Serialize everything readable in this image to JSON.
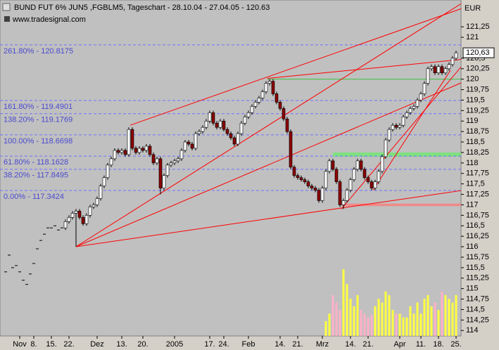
{
  "chart_data": {
    "type": "candlestick",
    "title": "BUND FUT 6% JUN5 ,FGBLM5, Tageschart - 28.10.04 - 27.04.05 - 120.63",
    "subtitle": "www.tradesignal.com",
    "unit": "EUR",
    "colors": {
      "up": "#ffffff",
      "down": "#8b0000",
      "volume_up": "#ffff40",
      "volume_down": "#ffb0c8",
      "trend": "#ff0000",
      "fib": "#7070ff",
      "fib_text": "#4a4ad0"
    },
    "open": [
      115.4,
      115.8,
      115.5,
      115.55,
      115.4,
      115.2,
      115.1,
      115.35,
      115.6,
      115.95,
      116.15,
      116.3,
      116.45,
      116.45,
      116.5,
      116.4,
      116.45,
      116.45,
      116.6,
      116.7,
      116.8,
      116.85,
      116.7,
      116.55,
      116.75,
      116.95,
      117.0,
      117.15,
      117.45,
      117.65,
      117.95,
      118.1,
      118.3,
      118.25,
      118.3,
      118.2,
      118.8,
      118.35,
      118.25,
      118.35,
      118.3,
      118.4,
      118.2,
      118.0,
      118.1,
      117.4,
      117.7,
      117.95,
      118.0,
      118.05,
      118.1,
      118.3,
      118.5,
      118.45,
      118.35,
      118.7,
      118.75,
      118.85,
      119.0,
      119.2,
      118.95,
      118.85,
      119.0,
      118.8,
      118.7,
      118.6,
      118.45,
      118.7,
      118.95,
      119.1,
      119.2,
      119.35,
      119.45,
      119.55,
      119.7,
      119.9,
      119.95,
      119.65,
      119.45,
      119.3,
      119.05,
      118.75,
      117.9,
      117.7,
      117.65,
      117.6,
      117.55,
      117.45,
      117.4,
      117.35,
      117.1,
      117.4,
      117.8,
      118.05,
      117.85,
      117.55,
      117.0,
      117.1,
      117.35,
      117.6,
      117.85,
      118.05,
      117.85,
      117.65,
      117.55,
      117.4,
      117.55,
      117.8,
      118.15,
      118.55,
      118.8,
      118.9,
      118.85,
      118.9,
      119.1,
      119.2,
      119.3,
      119.35,
      119.5,
      119.65,
      119.9,
      120.25,
      120.3,
      120.15,
      120.3,
      120.15,
      120.25,
      120.35,
      120.5
    ],
    "high": [
      115.4,
      115.8,
      115.5,
      115.55,
      115.4,
      115.2,
      115.1,
      115.35,
      115.6,
      115.95,
      116.15,
      116.3,
      116.45,
      116.45,
      116.5,
      116.4,
      116.45,
      116.65,
      116.75,
      116.85,
      116.9,
      116.9,
      116.75,
      116.8,
      117.0,
      117.05,
      117.2,
      117.5,
      117.7,
      118.0,
      118.15,
      118.35,
      118.35,
      118.35,
      118.35,
      118.85,
      118.85,
      118.4,
      118.4,
      118.4,
      118.45,
      118.45,
      118.25,
      118.15,
      118.15,
      117.75,
      118.0,
      118.05,
      118.1,
      118.15,
      118.35,
      118.55,
      118.55,
      118.5,
      118.75,
      118.8,
      118.9,
      119.05,
      119.25,
      119.25,
      119.0,
      119.05,
      119.05,
      118.85,
      118.75,
      118.65,
      118.75,
      119.0,
      119.15,
      119.25,
      119.4,
      119.5,
      119.6,
      119.75,
      119.95,
      120.0,
      120.0,
      119.7,
      119.5,
      119.35,
      119.1,
      118.8,
      117.95,
      117.75,
      117.7,
      117.65,
      117.6,
      117.5,
      117.45,
      117.4,
      117.45,
      117.85,
      118.1,
      118.1,
      117.9,
      117.6,
      117.15,
      117.4,
      117.65,
      117.9,
      118.1,
      118.1,
      117.9,
      117.7,
      117.6,
      117.6,
      117.85,
      118.2,
      118.6,
      118.85,
      118.95,
      118.95,
      118.95,
      119.15,
      119.25,
      119.35,
      119.4,
      119.55,
      119.7,
      119.95,
      120.3,
      120.35,
      120.35,
      120.35,
      120.35,
      120.3,
      120.4,
      120.55,
      120.68
    ],
    "low": [
      115.4,
      115.8,
      115.5,
      115.55,
      115.4,
      115.2,
      115.1,
      115.35,
      115.6,
      115.95,
      116.15,
      116.3,
      116.45,
      116.45,
      116.5,
      116.4,
      116.45,
      116.4,
      116.55,
      116.65,
      116.0,
      116.65,
      116.5,
      116.5,
      116.7,
      116.9,
      116.95,
      117.1,
      117.4,
      117.6,
      117.9,
      118.05,
      118.2,
      118.2,
      118.15,
      118.15,
      118.3,
      118.2,
      118.2,
      118.25,
      118.25,
      118.15,
      117.95,
      117.95,
      117.25,
      117.35,
      117.65,
      117.9,
      117.95,
      118.0,
      118.05,
      118.25,
      118.4,
      118.3,
      118.3,
      118.65,
      118.7,
      118.8,
      118.95,
      118.9,
      118.8,
      118.8,
      118.75,
      118.65,
      118.55,
      118.4,
      118.4,
      118.65,
      118.9,
      119.05,
      119.15,
      119.3,
      119.4,
      119.5,
      119.65,
      119.85,
      119.6,
      119.4,
      119.25,
      119.0,
      118.7,
      117.85,
      117.65,
      117.6,
      117.55,
      117.5,
      117.4,
      117.35,
      117.3,
      117.05,
      117.05,
      117.35,
      117.75,
      117.8,
      117.5,
      116.95,
      116.9,
      117.05,
      117.3,
      117.55,
      117.8,
      117.8,
      117.6,
      117.5,
      117.35,
      117.35,
      117.5,
      117.75,
      118.1,
      118.5,
      118.75,
      118.8,
      118.8,
      118.85,
      119.05,
      119.15,
      119.25,
      119.3,
      119.45,
      119.6,
      119.85,
      120.2,
      120.1,
      120.1,
      120.1,
      120.1,
      120.2,
      120.3,
      120.45
    ],
    "close": [
      115.4,
      115.8,
      115.5,
      115.55,
      115.4,
      115.2,
      115.1,
      115.35,
      115.6,
      115.95,
      116.15,
      116.3,
      116.45,
      116.45,
      116.5,
      116.4,
      116.45,
      116.6,
      116.7,
      116.8,
      116.85,
      116.7,
      116.55,
      116.75,
      116.95,
      117.0,
      117.15,
      117.45,
      117.65,
      117.95,
      118.1,
      118.3,
      118.25,
      118.3,
      118.2,
      118.8,
      118.35,
      118.25,
      118.35,
      118.3,
      118.4,
      118.2,
      118.0,
      118.1,
      117.4,
      117.7,
      117.95,
      118.0,
      118.05,
      118.1,
      118.3,
      118.5,
      118.45,
      118.35,
      118.7,
      118.75,
      118.85,
      119.0,
      119.2,
      118.95,
      118.85,
      119.0,
      118.8,
      118.7,
      118.6,
      118.45,
      118.7,
      118.95,
      119.1,
      119.2,
      119.35,
      119.45,
      119.55,
      119.7,
      119.9,
      119.95,
      119.65,
      119.45,
      119.3,
      119.05,
      118.75,
      117.9,
      117.7,
      117.65,
      117.6,
      117.55,
      117.45,
      117.4,
      117.35,
      117.1,
      117.4,
      117.8,
      118.05,
      117.85,
      117.55,
      117.0,
      117.1,
      117.35,
      117.6,
      117.85,
      118.05,
      117.85,
      117.65,
      117.55,
      117.4,
      117.55,
      117.8,
      118.15,
      118.55,
      118.8,
      118.9,
      118.85,
      118.9,
      119.1,
      119.2,
      119.3,
      119.35,
      119.5,
      119.65,
      119.9,
      120.25,
      120.3,
      120.15,
      120.3,
      120.15,
      120.25,
      120.35,
      120.5,
      120.63
    ],
    "volume": [
      null,
      null,
      null,
      null,
      null,
      null,
      null,
      null,
      null,
      null,
      null,
      null,
      null,
      null,
      null,
      null,
      null,
      null,
      null,
      null,
      null,
      null,
      null,
      null,
      null,
      null,
      null,
      null,
      null,
      null,
      null,
      null,
      null,
      null,
      null,
      null,
      null,
      null,
      null,
      null,
      null,
      null,
      null,
      null,
      null,
      null,
      null,
      null,
      null,
      null,
      null,
      null,
      null,
      null,
      null,
      null,
      null,
      null,
      null,
      null,
      null,
      null,
      null,
      null,
      null,
      null,
      null,
      null,
      null,
      null,
      null,
      null,
      null,
      null,
      null,
      null,
      null,
      null,
      null,
      null,
      null,
      null,
      null,
      null,
      null,
      null,
      null,
      null,
      null,
      null,
      null,
      20,
      30,
      55,
      45,
      35,
      90,
      70,
      50,
      40,
      55,
      35,
      30,
      25,
      28,
      40,
      50,
      45,
      60,
      55,
      35,
      30,
      30,
      25,
      25,
      40,
      30,
      45,
      30,
      50,
      55,
      40,
      45,
      35,
      60,
      55,
      50,
      45,
      55
    ],
    "xlim": [
      -1.6,
      129.4
    ],
    "xticks": [
      {
        "value": 4,
        "label": "Nov"
      },
      {
        "value": 8,
        "label": "8."
      },
      {
        "value": 13,
        "label": "15."
      },
      {
        "value": 18,
        "label": "22."
      },
      {
        "value": 26,
        "label": "Dez"
      },
      {
        "value": 33,
        "label": "13."
      },
      {
        "value": 39,
        "label": "20."
      },
      {
        "value": 48,
        "label": "2005"
      },
      {
        "value": 58,
        "label": "17."
      },
      {
        "value": 62,
        "label": "24."
      },
      {
        "value": 69,
        "label": "Feb"
      },
      {
        "value": 78,
        "label": "14."
      },
      {
        "value": 83,
        "label": "21."
      },
      {
        "value": 90,
        "label": "Mrz"
      },
      {
        "value": 98,
        "label": "14."
      },
      {
        "value": 103,
        "label": "21."
      },
      {
        "value": 112,
        "label": "Apr"
      },
      {
        "value": 118,
        "label": "11."
      },
      {
        "value": 123,
        "label": "18."
      },
      {
        "value": 128,
        "label": "25."
      }
    ],
    "ylim": [
      113.87,
      121.89
    ],
    "yticks": [
      114,
      {
        "value": 114.25,
        "label": "114,25"
      },
      {
        "value": 114.5,
        "label": "114,5"
      },
      {
        "value": 114.75,
        "label": "114,75"
      },
      115,
      {
        "value": 115.25,
        "label": "115,25"
      },
      {
        "value": 115.5,
        "label": "115,5"
      },
      {
        "value": 115.75,
        "label": "115,75"
      },
      116,
      {
        "value": 116.25,
        "label": "116,25"
      },
      {
        "value": 116.5,
        "label": "116,5"
      },
      {
        "value": 116.75,
        "label": "116,75"
      },
      117,
      {
        "value": 117.25,
        "label": "117,25"
      },
      {
        "value": 117.5,
        "label": "117,5"
      },
      {
        "value": 117.75,
        "label": "117,75"
      },
      118,
      {
        "value": 118.25,
        "label": "118,25"
      },
      {
        "value": 118.5,
        "label": "118,5"
      },
      {
        "value": 118.75,
        "label": "118,75"
      },
      119,
      {
        "value": 119.25,
        "label": "119,25"
      },
      {
        "value": 119.5,
        "label": "119,5"
      },
      {
        "value": 119.75,
        "label": "119,75"
      },
      120,
      {
        "value": 120.25,
        "label": "120,25"
      },
      {
        "value": 120.5,
        "label": "120,5"
      },
      121,
      {
        "value": 121.25,
        "label": "121,25"
      }
    ],
    "last_price": {
      "value": 120.63,
      "label": "120,63"
    },
    "fib_levels": [
      {
        "label": "261.80% - 120.8175",
        "value": 120.8175
      },
      {
        "label": "161.80% - 119.4901",
        "value": 119.4901
      },
      {
        "label": "138.20% - 119.1769",
        "value": 119.1769
      },
      {
        "label": "100.00% - 118.6698",
        "value": 118.6698
      },
      {
        "label": "61.80% - 118.1628",
        "value": 118.1628
      },
      {
        "label": "38.20% - 117.8495",
        "value": 117.8495
      },
      {
        "label": "0.00% - 117.3424",
        "value": 117.3424
      }
    ],
    "trend_lines": [
      {
        "x": [
          35.4,
          129.4
        ],
        "y": [
          118.9,
          121.68
        ]
      },
      {
        "x": [
          74.4,
          129.4
        ],
        "y": [
          120.02,
          120.47
        ]
      },
      {
        "x": [
          20,
          129.4
        ],
        "y": [
          116.0,
          121.8
        ]
      },
      {
        "x": [
          20,
          129.4
        ],
        "y": [
          116.0,
          119.91
        ]
      },
      {
        "x": [
          20,
          129.4
        ],
        "y": [
          116.0,
          117.34
        ]
      },
      {
        "x": [
          95.4,
          129.4
        ],
        "y": [
          116.9,
          120.29
        ]
      },
      {
        "x": [
          104.4,
          126.4
        ],
        "y": [
          117.35,
          120.21
        ]
      }
    ],
    "horizontal_lines": [
      {
        "x": [
          74.4,
          129.4
        ],
        "y": 120,
        "color": "#40c040"
      }
    ],
    "zones": [
      {
        "x": [
          93,
          129.4
        ],
        "y": [
          118.15,
          118.25
        ],
        "color": "#80e080"
      },
      {
        "x": [
          95.4,
          129.4
        ],
        "y": [
          116.97,
          117.03
        ],
        "color": "#ee8a8a"
      }
    ],
    "grid": false
  }
}
